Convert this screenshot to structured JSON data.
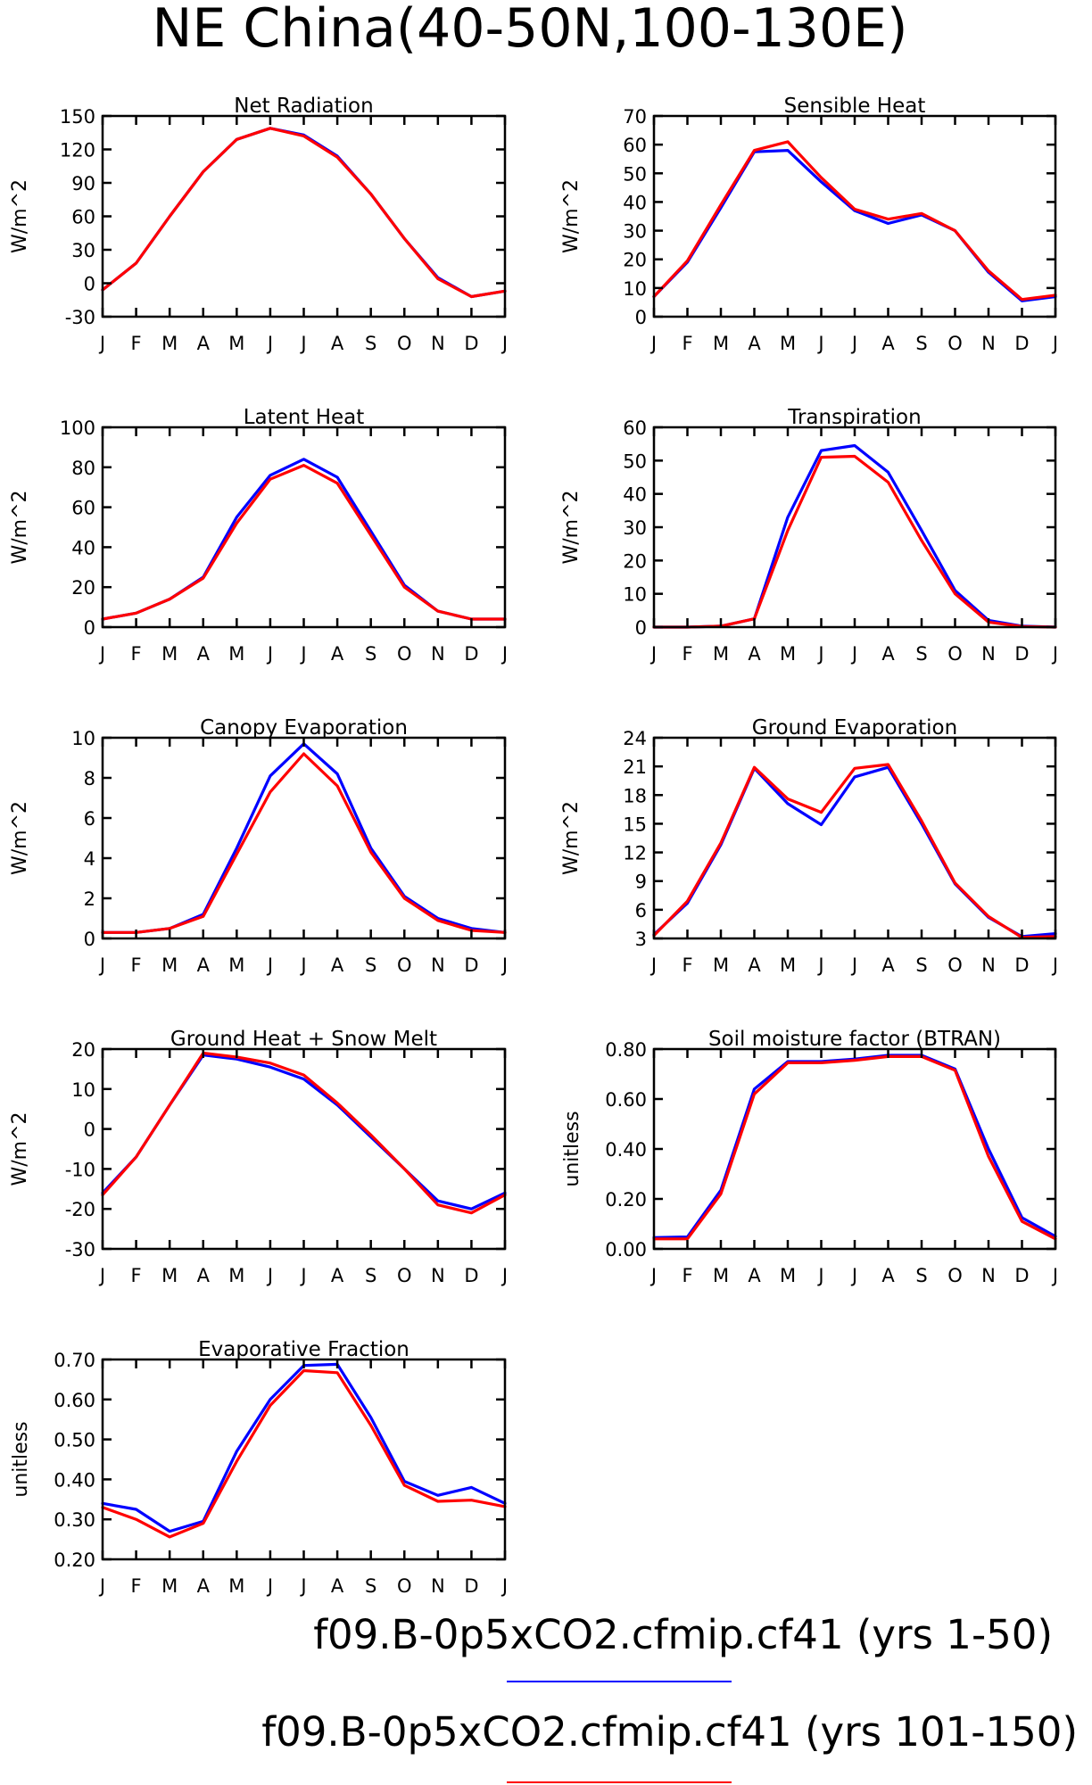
{
  "title": "NE China(40-50N,100-130E)",
  "colors": {
    "series1": "#0000ff",
    "series2": "#ff0000",
    "axis": "#000000"
  },
  "months": [
    "J",
    "F",
    "M",
    "A",
    "M",
    "J",
    "J",
    "A",
    "S",
    "O",
    "N",
    "D",
    "J"
  ],
  "legend": [
    {
      "label": "f09.B-0p5xCO2.cfmip.cf41 (yrs 1-50)",
      "color": "#0000ff"
    },
    {
      "label": "f09.B-0p5xCO2.cfmip.cf41 (yrs 101-150)",
      "color": "#ff0000"
    }
  ],
  "chart_data": [
    {
      "type": "line",
      "title": "Net Radiation",
      "ylabel": "W/m^2",
      "ylim": [
        -30,
        150
      ],
      "yticks": [
        -30,
        0,
        30,
        60,
        90,
        120,
        150
      ],
      "ytick_labels": [
        "-30",
        "0",
        "30",
        "60",
        "90",
        "120",
        "150"
      ],
      "categories": [
        "J",
        "F",
        "M",
        "A",
        "M",
        "J",
        "J",
        "A",
        "S",
        "O",
        "N",
        "D",
        "J"
      ],
      "series": [
        {
          "values": [
            -6,
            18,
            60,
            100,
            129,
            139,
            133,
            114,
            80,
            40,
            5,
            -12,
            -7
          ]
        },
        {
          "values": [
            -6,
            18,
            60,
            100,
            129,
            139,
            132,
            113,
            80,
            40,
            4,
            -12,
            -7
          ]
        }
      ]
    },
    {
      "type": "line",
      "title": "Sensible Heat",
      "ylabel": "W/m^2",
      "ylim": [
        0,
        70
      ],
      "yticks": [
        0,
        10,
        20,
        30,
        40,
        50,
        60,
        70
      ],
      "ytick_labels": [
        "0",
        "10",
        "20",
        "30",
        "40",
        "50",
        "60",
        "70"
      ],
      "categories": [
        "J",
        "F",
        "M",
        "A",
        "M",
        "J",
        "J",
        "A",
        "S",
        "O",
        "N",
        "D",
        "J"
      ],
      "series": [
        {
          "values": [
            7,
            19,
            38,
            57.5,
            58,
            47,
            37,
            32.5,
            35.5,
            30,
            15.5,
            5.5,
            7
          ]
        },
        {
          "values": [
            7,
            19.5,
            39,
            58,
            61,
            48.5,
            37.5,
            34,
            36,
            30,
            16,
            6,
            7.5
          ]
        }
      ]
    },
    {
      "type": "line",
      "title": "Latent Heat",
      "ylabel": "W/m^2",
      "ylim": [
        0,
        100
      ],
      "yticks": [
        0,
        20,
        40,
        60,
        80,
        100
      ],
      "ytick_labels": [
        "0",
        "20",
        "40",
        "60",
        "80",
        "100"
      ],
      "categories": [
        "J",
        "F",
        "M",
        "A",
        "M",
        "J",
        "J",
        "A",
        "S",
        "O",
        "N",
        "D",
        "J"
      ],
      "series": [
        {
          "values": [
            4,
            7,
            14,
            25,
            55,
            76,
            84,
            75,
            48,
            21,
            8,
            4,
            4
          ]
        },
        {
          "values": [
            4,
            7,
            14,
            24.5,
            52,
            74,
            81,
            72,
            46,
            20,
            8,
            4,
            4
          ]
        }
      ]
    },
    {
      "type": "line",
      "title": "Transpiration",
      "ylabel": "W/m^2",
      "ylim": [
        0,
        60
      ],
      "yticks": [
        0,
        10,
        20,
        30,
        40,
        50,
        60
      ],
      "ytick_labels": [
        "0",
        "10",
        "20",
        "30",
        "40",
        "50",
        "60"
      ],
      "categories": [
        "J",
        "F",
        "M",
        "A",
        "M",
        "J",
        "J",
        "A",
        "S",
        "O",
        "N",
        "D",
        "J"
      ],
      "series": [
        {
          "values": [
            0,
            0,
            0.3,
            2.5,
            33,
            53,
            54.5,
            46.5,
            29,
            11,
            2,
            0.3,
            0
          ]
        },
        {
          "values": [
            0,
            0,
            0.3,
            2.5,
            29,
            51,
            51.3,
            43.5,
            26,
            10,
            1.5,
            0.2,
            0
          ]
        }
      ]
    },
    {
      "type": "line",
      "title": "Canopy Evaporation",
      "ylabel": "W/m^2",
      "ylim": [
        0,
        10
      ],
      "yticks": [
        0,
        2,
        4,
        6,
        8,
        10
      ],
      "ytick_labels": [
        "0",
        "2",
        "4",
        "6",
        "8",
        "10"
      ],
      "categories": [
        "J",
        "F",
        "M",
        "A",
        "M",
        "J",
        "J",
        "A",
        "S",
        "O",
        "N",
        "D",
        "J"
      ],
      "series": [
        {
          "values": [
            0.3,
            0.3,
            0.5,
            1.2,
            4.5,
            8.1,
            9.7,
            8.2,
            4.5,
            2.1,
            1.0,
            0.5,
            0.3
          ]
        },
        {
          "values": [
            0.3,
            0.3,
            0.5,
            1.1,
            4.2,
            7.3,
            9.2,
            7.6,
            4.3,
            2.0,
            0.9,
            0.4,
            0.3
          ]
        }
      ]
    },
    {
      "type": "line",
      "title": "Ground Evaporation",
      "ylabel": "W/m^2",
      "ylim": [
        3,
        24
      ],
      "yticks": [
        3,
        6,
        9,
        12,
        15,
        18,
        21,
        24
      ],
      "ytick_labels": [
        "3",
        "6",
        "9",
        "12",
        "15",
        "18",
        "21",
        "24"
      ],
      "categories": [
        "J",
        "F",
        "M",
        "A",
        "M",
        "J",
        "J",
        "A",
        "S",
        "O",
        "N",
        "D",
        "J"
      ],
      "series": [
        {
          "values": [
            3.4,
            6.7,
            12.8,
            20.8,
            17.1,
            14.9,
            19.9,
            20.9,
            15.0,
            8.7,
            5.2,
            3.2,
            3.5
          ]
        },
        {
          "values": [
            3.3,
            6.9,
            13.0,
            20.9,
            17.6,
            16.2,
            20.8,
            21.2,
            15.3,
            8.8,
            5.3,
            3.1,
            3.2
          ]
        }
      ]
    },
    {
      "type": "line",
      "title": "Ground Heat + Snow Melt",
      "ylabel": "W/m^2",
      "ylim": [
        -30,
        20
      ],
      "yticks": [
        -30,
        -20,
        -10,
        0,
        10,
        20
      ],
      "ytick_labels": [
        "-30",
        "-20",
        "-10",
        "0",
        "10",
        "20"
      ],
      "categories": [
        "J",
        "F",
        "M",
        "A",
        "M",
        "J",
        "J",
        "A",
        "S",
        "O",
        "N",
        "D",
        "J"
      ],
      "series": [
        {
          "values": [
            -16,
            -7,
            6,
            18.5,
            17.5,
            15.5,
            12.5,
            6,
            -2,
            -10,
            -18,
            -20,
            -16
          ]
        },
        {
          "values": [
            -16.5,
            -7,
            6,
            19,
            18,
            16.5,
            13.5,
            6.5,
            -1.5,
            -10,
            -19,
            -21,
            -16.5
          ]
        }
      ]
    },
    {
      "type": "line",
      "title": "Soil moisture factor (BTRAN)",
      "ylabel": "unitless",
      "ylim": [
        0,
        0.8
      ],
      "yticks": [
        0,
        0.2,
        0.4,
        0.6,
        0.8
      ],
      "ytick_labels": [
        "0.00",
        "0.20",
        "0.40",
        "0.60",
        "0.80"
      ],
      "categories": [
        "J",
        "F",
        "M",
        "A",
        "M",
        "J",
        "J",
        "A",
        "S",
        "O",
        "N",
        "D",
        "J"
      ],
      "series": [
        {
          "values": [
            0.045,
            0.048,
            0.235,
            0.64,
            0.75,
            0.75,
            0.76,
            0.775,
            0.775,
            0.72,
            0.4,
            0.125,
            0.05
          ]
        },
        {
          "values": [
            0.04,
            0.04,
            0.22,
            0.62,
            0.745,
            0.745,
            0.755,
            0.77,
            0.77,
            0.715,
            0.37,
            0.11,
            0.04
          ]
        }
      ]
    },
    {
      "type": "line",
      "title": "Evaporative Fraction",
      "ylabel": "unitless",
      "ylim": [
        0.2,
        0.7
      ],
      "yticks": [
        0.2,
        0.3,
        0.4,
        0.5,
        0.6,
        0.7
      ],
      "ytick_labels": [
        "0.20",
        "0.30",
        "0.40",
        "0.50",
        "0.60",
        "0.70"
      ],
      "categories": [
        "J",
        "F",
        "M",
        "A",
        "M",
        "J",
        "J",
        "A",
        "S",
        "O",
        "N",
        "D",
        "J"
      ],
      "series": [
        {
          "values": [
            0.34,
            0.325,
            0.27,
            0.295,
            0.47,
            0.6,
            0.685,
            0.688,
            0.555,
            0.395,
            0.36,
            0.38,
            0.34
          ]
        },
        {
          "values": [
            0.33,
            0.3,
            0.256,
            0.29,
            0.445,
            0.585,
            0.672,
            0.667,
            0.535,
            0.385,
            0.345,
            0.348,
            0.332
          ]
        }
      ]
    }
  ]
}
